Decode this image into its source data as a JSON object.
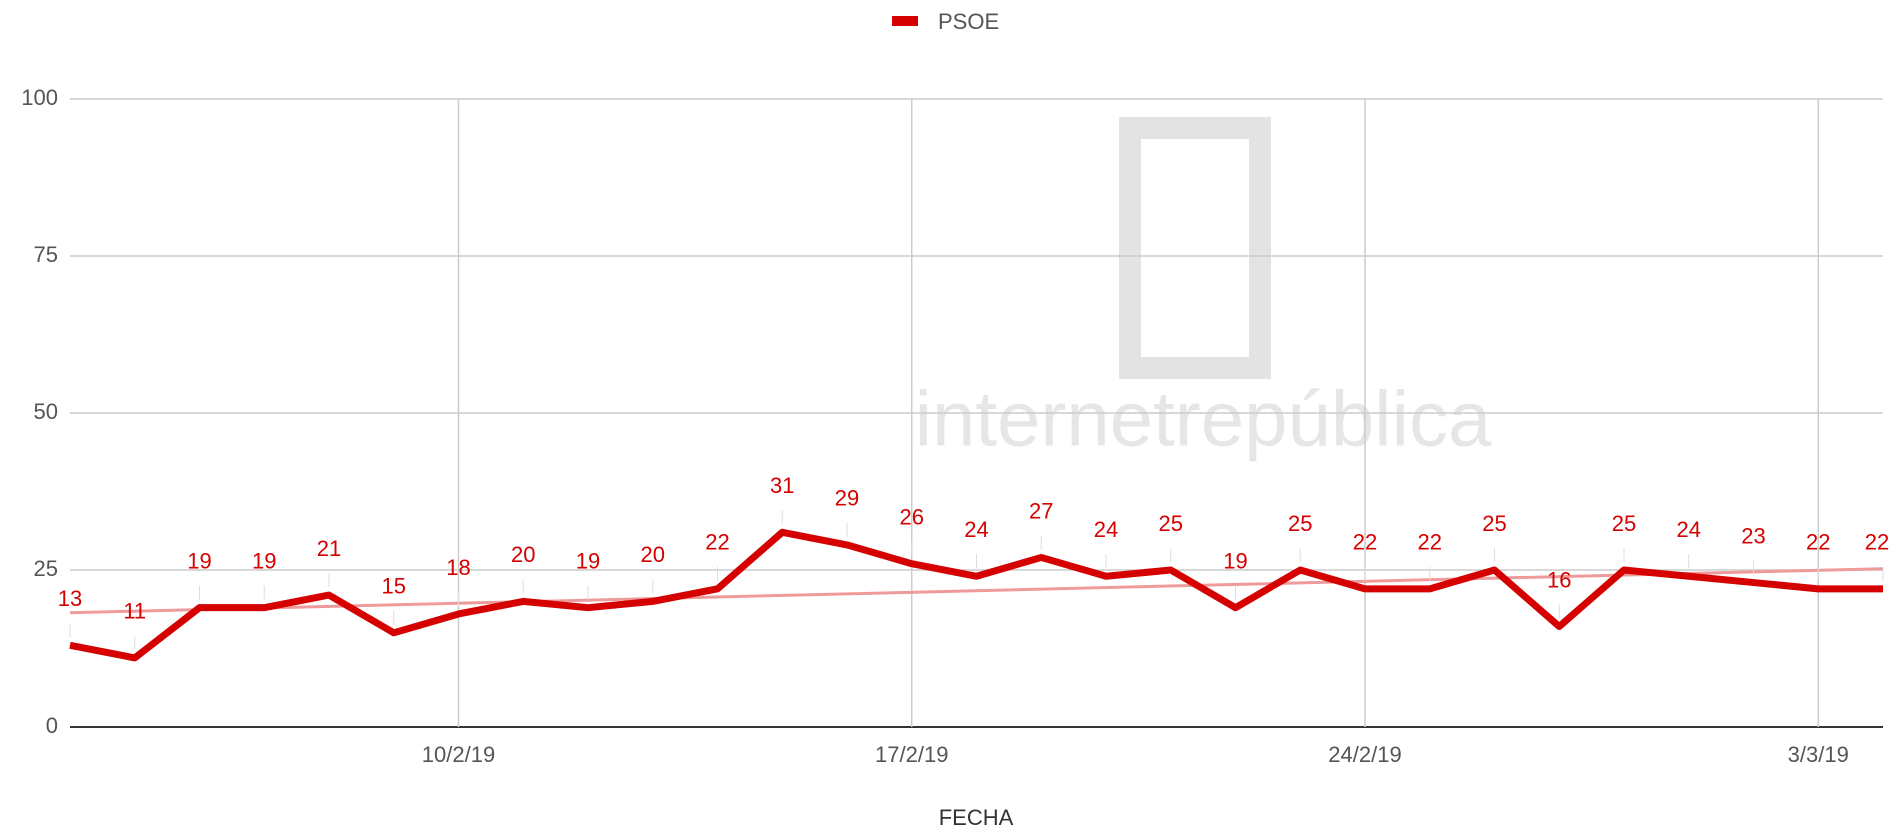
{
  "chart_data": {
    "type": "line",
    "legend_position": "top",
    "x_label": "FECHA",
    "watermark": "internetrepública",
    "categories": [
      null,
      null,
      null,
      null,
      null,
      null,
      "10/2/19",
      null,
      null,
      null,
      null,
      null,
      null,
      "17/2/19",
      null,
      null,
      null,
      null,
      null,
      null,
      "24/2/19",
      null,
      null,
      null,
      null,
      null,
      null,
      "3/3/19",
      null
    ],
    "series": [
      {
        "name": "PSOE",
        "color": "#d50000",
        "values": [
          13,
          11,
          19,
          19,
          21,
          15,
          18,
          20,
          19,
          20,
          22,
          31,
          29,
          26,
          24,
          27,
          24,
          25,
          19,
          25,
          22,
          22,
          25,
          16,
          25,
          24,
          23,
          22,
          22
        ]
      }
    ],
    "trendline": {
      "color": "#ef9a9a",
      "start": 18.2,
      "end": 25.2
    },
    "ylim": [
      0,
      100
    ],
    "yticks": [
      0,
      25,
      50,
      75,
      100
    ],
    "grid": true
  }
}
